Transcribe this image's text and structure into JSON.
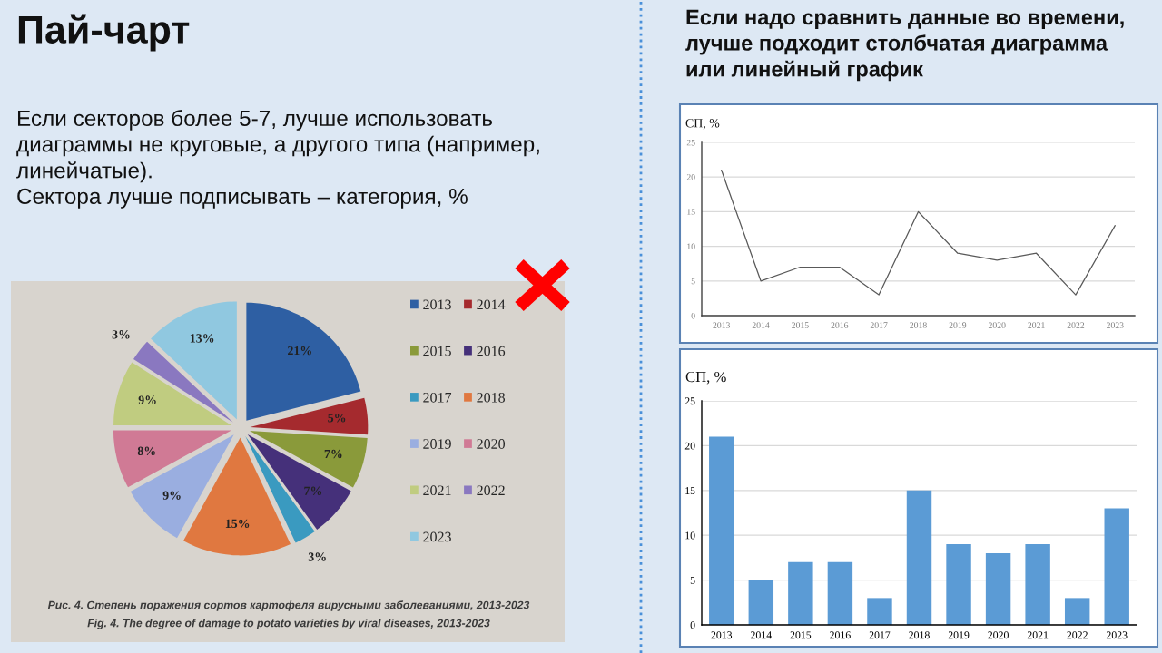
{
  "chart_data": [
    {
      "type": "pie",
      "title": "Пай-чарт",
      "subtitle": "Если секторов более 5-7, лучше использовать\nдиаграммы не круговые, а другого типа (например,\nлинейчатые).\nСектора лучше подписывать – категория, %",
      "categories": [
        "2013",
        "2014",
        "2015",
        "2016",
        "2017",
        "2018",
        "2019",
        "2020",
        "2021",
        "2022",
        "2023"
      ],
      "values": [
        21,
        5,
        7,
        7,
        3,
        15,
        9,
        8,
        9,
        3,
        13
      ],
      "colors": [
        "#2e5fa3",
        "#a52a2e",
        "#8a9a3a",
        "#45307a",
        "#3a9ac0",
        "#e07840",
        "#9aaee0",
        "#d07a95",
        "#c0cc80",
        "#8a78c0",
        "#90c8e0"
      ],
      "value_labels": [
        "21%",
        "5%",
        "7%",
        "7%",
        "3%",
        "15%",
        "9%",
        "8%",
        "9%",
        "3%",
        "13%"
      ],
      "legend": "right",
      "annotations": [
        "Рис. 4. Степень поражения сортов картофеля вирусными заболеваниями, 2013-2023",
        "Fig. 4. The degree of damage to potato varieties by viral diseases, 2013-2023"
      ]
    },
    {
      "type": "line",
      "title": "Если надо сравнить данные во времени,\nлучше подходит столбчатая диаграмма\nили линейный график",
      "ylabel": "СП, %",
      "categories": [
        "2013",
        "2014",
        "2015",
        "2016",
        "2017",
        "2018",
        "2019",
        "2020",
        "2021",
        "2022",
        "2023"
      ],
      "values": [
        21,
        5,
        7,
        7,
        3,
        15,
        9,
        8,
        9,
        3,
        13
      ],
      "color": "#595959",
      "ylim": [
        0,
        25
      ],
      "yticks": [
        0,
        5,
        10,
        15,
        20,
        25
      ],
      "grid": "y"
    },
    {
      "type": "bar",
      "ylabel": "СП, %",
      "categories": [
        "2013",
        "2014",
        "2015",
        "2016",
        "2017",
        "2018",
        "2019",
        "2020",
        "2021",
        "2022",
        "2023"
      ],
      "values": [
        21,
        5,
        7,
        7,
        3,
        15,
        9,
        8,
        9,
        3,
        13
      ],
      "color": "#5b9bd5",
      "ylim": [
        0,
        25
      ],
      "yticks": [
        0,
        5,
        10,
        15,
        20,
        25
      ],
      "grid": "y"
    }
  ]
}
